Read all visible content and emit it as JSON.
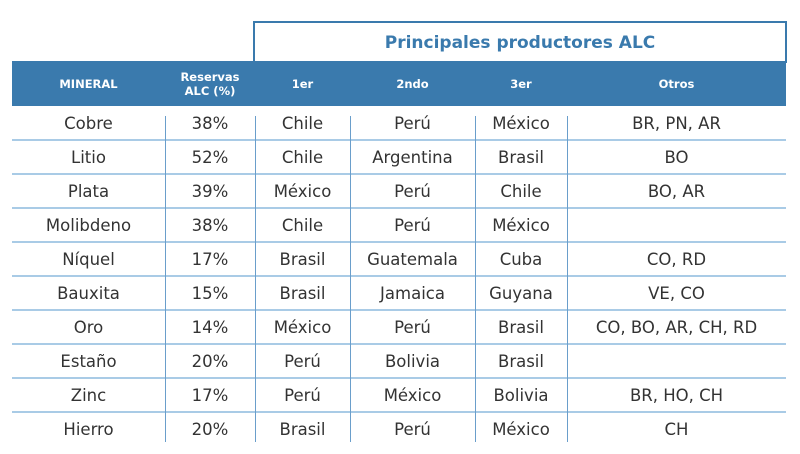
{
  "title": "Principales productores ALC",
  "colors": {
    "accent": "#3a7aad",
    "row_line": "#a9cbe6",
    "text": "#333333"
  },
  "headers": [
    "MINERAL",
    "Reservas ALC (%)",
    "1er",
    "2ndo",
    "3er",
    "Otros"
  ],
  "headers_lines": {
    "reservas_l1": "Reservas",
    "reservas_l2": "ALC (%)"
  },
  "rows": [
    {
      "mineral": "Cobre",
      "reservas": "38%",
      "p1": "Chile",
      "p2": "Perú",
      "p3": "México",
      "otros": "BR, PN, AR"
    },
    {
      "mineral": "Litio",
      "reservas": "52%",
      "p1": "Chile",
      "p2": "Argentina",
      "p3": "Brasil",
      "otros": "BO"
    },
    {
      "mineral": "Plata",
      "reservas": "39%",
      "p1": "México",
      "p2": "Perú",
      "p3": "Chile",
      "otros": "BO, AR"
    },
    {
      "mineral": "Molibdeno",
      "reservas": "38%",
      "p1": "Chile",
      "p2": "Perú",
      "p3": "México",
      "otros": ""
    },
    {
      "mineral": "Níquel",
      "reservas": "17%",
      "p1": "Brasil",
      "p2": "Guatemala",
      "p3": "Cuba",
      "otros": "CO, RD"
    },
    {
      "mineral": "Bauxita",
      "reservas": "15%",
      "p1": "Brasil",
      "p2": "Jamaica",
      "p3": "Guyana",
      "otros": "VE, CO"
    },
    {
      "mineral": "Oro",
      "reservas": "14%",
      "p1": "México",
      "p2": "Perú",
      "p3": "Brasil",
      "otros": "CO, BO, AR, CH, RD"
    },
    {
      "mineral": "Estaño",
      "reservas": "20%",
      "p1": "Perú",
      "p2": "Bolivia",
      "p3": "Brasil",
      "otros": ""
    },
    {
      "mineral": "Zinc",
      "reservas": "17%",
      "p1": "Perú",
      "p2": "México",
      "p3": "Bolivia",
      "otros": "BR, HO, CH"
    },
    {
      "mineral": "Hierro",
      "reservas": "20%",
      "p1": "Brasil",
      "p2": "Perú",
      "p3": "México",
      "otros": "CH"
    }
  ]
}
